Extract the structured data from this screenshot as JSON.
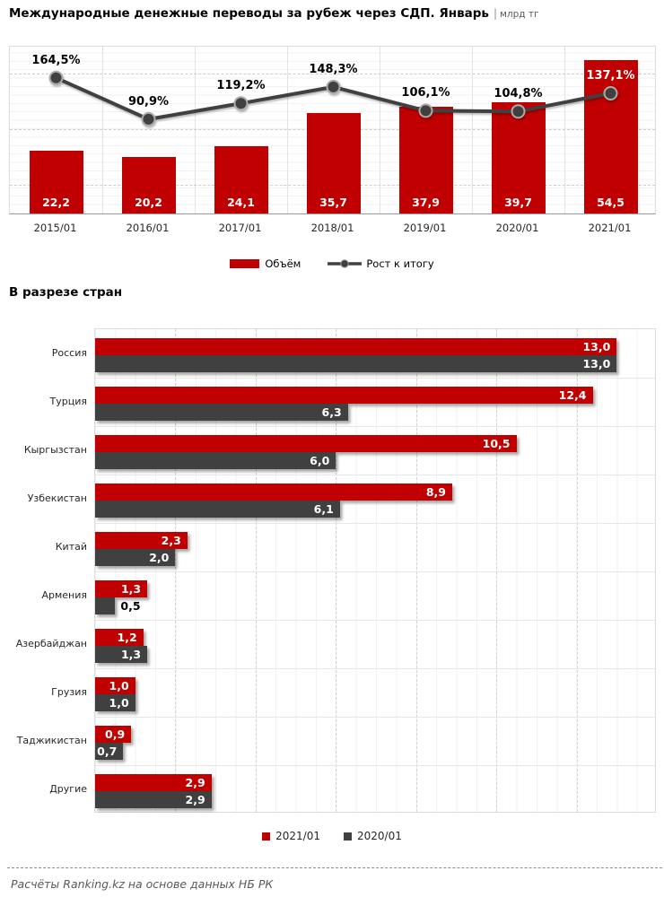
{
  "header": {
    "title": "Международные денежные переводы за рубеж через СДП. Январь",
    "separator": "|",
    "unit": "млрд тг"
  },
  "footer": {
    "source": "Расчёты Ranking.kz на основе данных НБ РК"
  },
  "colors": {
    "accent_red": "#c00000",
    "dark_gray": "#404040"
  },
  "chart_data": [
    {
      "type": "bar",
      "subtype": "bar-line-combo",
      "title": "Международные денежные переводы за рубеж через СДП. Январь",
      "unit": "млрд тг",
      "categories": [
        "2015/01",
        "2016/01",
        "2017/01",
        "2018/01",
        "2019/01",
        "2020/01",
        "2021/01"
      ],
      "series": [
        {
          "name": "Объём",
          "type": "bar",
          "color": "#c00000",
          "values": [
            22.2,
            20.2,
            24.1,
            35.7,
            37.9,
            39.7,
            54.5
          ]
        },
        {
          "name": "Рост к итогу",
          "type": "line",
          "color": "#404040",
          "unit": "%",
          "values": [
            164.5,
            90.9,
            119.2,
            148.3,
            106.1,
            104.8,
            137.1
          ]
        }
      ],
      "ylim": [
        0,
        60
      ],
      "grid": true,
      "legend_position": "bottom"
    },
    {
      "type": "bar",
      "orientation": "horizontal",
      "title": "В разрезе стран",
      "categories": [
        "Россия",
        "Турция",
        "Кыргызстан",
        "Узбекистан",
        "Китай",
        "Армения",
        "Азербайджан",
        "Грузия",
        "Таджикистан",
        "Другие"
      ],
      "series": [
        {
          "name": "2021/01",
          "color": "#c00000",
          "values": [
            13.0,
            12.4,
            10.5,
            8.9,
            2.3,
            1.3,
            1.2,
            1.0,
            0.9,
            2.9
          ]
        },
        {
          "name": "2020/01",
          "color": "#404040",
          "values": [
            13.0,
            6.3,
            6.0,
            6.1,
            2.0,
            0.5,
            1.3,
            1.0,
            0.7,
            2.9
          ]
        }
      ],
      "xlim": [
        0,
        14
      ],
      "grid": true,
      "legend_position": "bottom"
    }
  ]
}
